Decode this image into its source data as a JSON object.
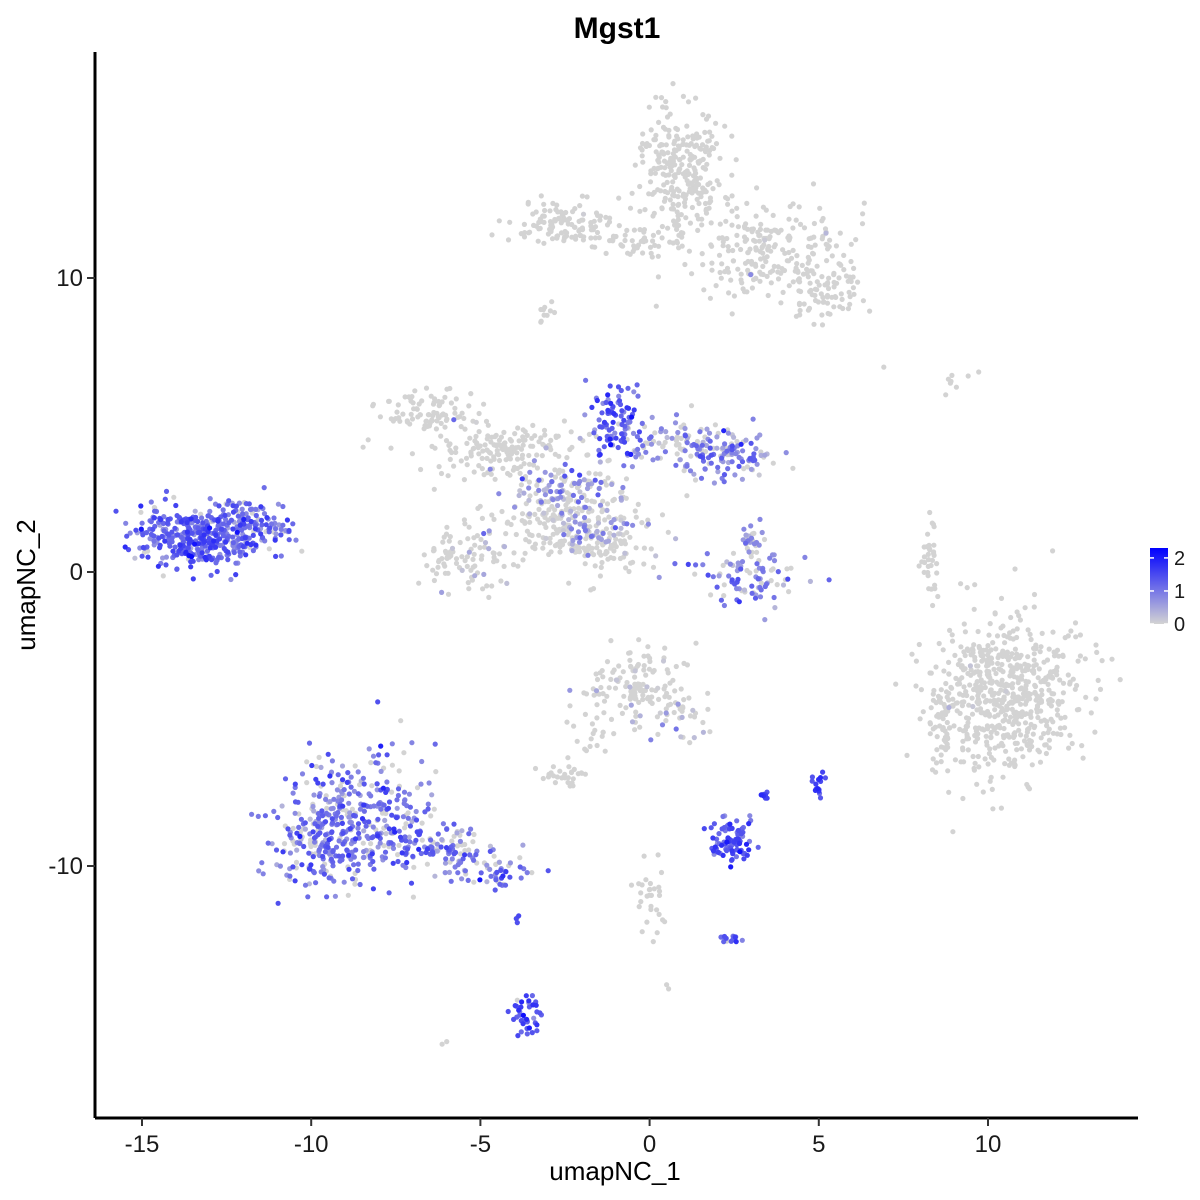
{
  "chart_data": {
    "type": "scatter",
    "title": "Mgst1",
    "xlabel": "umapNC_1",
    "ylabel": "umapNC_2",
    "xlim": [
      -16.4,
      14.5
    ],
    "ylim": [
      -18.5,
      17.5
    ],
    "x_ticks": [
      -15,
      -10,
      -5,
      0,
      5,
      10
    ],
    "x_tick_labels": [
      "-15",
      "-10",
      "-5",
      "0",
      "5",
      "10"
    ],
    "y_ticks": [
      -10,
      0,
      10
    ],
    "y_tick_labels": [
      "-10",
      "0",
      "10"
    ],
    "grid": false,
    "legend": {
      "placement": "right",
      "type": "color-gradient",
      "ticks": [
        0,
        1,
        2
      ],
      "tick_labels": [
        "0",
        "1",
        "2"
      ],
      "range": [
        0,
        2.3
      ],
      "colors": [
        "#d3d3d3",
        "#0000ff"
      ]
    },
    "clusters": [
      {
        "cx": -13.2,
        "cy": 1.2,
        "sx": 1.0,
        "sy": 0.55,
        "n": 420,
        "expr": 1.2
      },
      {
        "cx": -12.0,
        "cy": 2.0,
        "sx": 0.5,
        "sy": 0.4,
        "n": 50,
        "expr": 1.1
      },
      {
        "cx": -11.1,
        "cy": 1.4,
        "sx": 0.4,
        "sy": 0.2,
        "n": 30,
        "expr": 1.0
      },
      {
        "cx": -8.7,
        "cy": -8.4,
        "sx": 1.0,
        "sy": 1.2,
        "n": 380,
        "expr": 1.05
      },
      {
        "cx": -10.0,
        "cy": -9.2,
        "sx": 0.6,
        "sy": 0.5,
        "n": 90,
        "expr": 1.0
      },
      {
        "cx": -6.4,
        "cy": -9.4,
        "sx": 1.0,
        "sy": 0.35,
        "n": 110,
        "expr": 1.0
      },
      {
        "cx": -4.7,
        "cy": -10.2,
        "sx": 0.6,
        "sy": 0.25,
        "n": 50,
        "expr": 1.05
      },
      {
        "cx": -3.6,
        "cy": -15.0,
        "sx": 0.25,
        "sy": 0.5,
        "n": 40,
        "expr": 1.4
      },
      {
        "cx": -3.9,
        "cy": -11.8,
        "sx": 0.05,
        "sy": 0.1,
        "n": 4,
        "expr": 1.0
      },
      {
        "cx": -2.3,
        "cy": 1.6,
        "sx": 1.2,
        "sy": 0.8,
        "n": 230,
        "expr": 0.25
      },
      {
        "cx": -5.5,
        "cy": 0.4,
        "sx": 0.6,
        "sy": 0.6,
        "n": 80,
        "expr": 0.2
      },
      {
        "cx": -4.5,
        "cy": 4.2,
        "sx": 1.2,
        "sy": 0.5,
        "n": 170,
        "expr": 0.05
      },
      {
        "cx": -6.6,
        "cy": 5.4,
        "sx": 0.7,
        "sy": 0.4,
        "n": 80,
        "expr": 0.03
      },
      {
        "cx": -1.0,
        "cy": 5.3,
        "sx": 0.35,
        "sy": 0.6,
        "n": 90,
        "expr": 1.3
      },
      {
        "cx": 0.5,
        "cy": 4.2,
        "sx": 1.0,
        "sy": 0.5,
        "n": 90,
        "expr": 0.7
      },
      {
        "cx": 2.3,
        "cy": 4.0,
        "sx": 0.6,
        "sy": 0.4,
        "n": 110,
        "expr": 0.9
      },
      {
        "cx": -2.5,
        "cy": 3.0,
        "sx": 0.8,
        "sy": 0.4,
        "n": 80,
        "expr": 0.8
      },
      {
        "cx": -1.8,
        "cy": 1.5,
        "sx": 0.6,
        "sy": 0.5,
        "n": 60,
        "expr": 0.7
      },
      {
        "cx": -1.2,
        "cy": 0.8,
        "sx": 0.5,
        "sy": 0.3,
        "n": 40,
        "expr": 0.0
      },
      {
        "cx": 0.9,
        "cy": 13.8,
        "sx": 0.6,
        "sy": 1.1,
        "n": 270,
        "expr": 0.02
      },
      {
        "cx": 3.5,
        "cy": 11.0,
        "sx": 1.2,
        "sy": 0.8,
        "n": 220,
        "expr": 0.03
      },
      {
        "cx": 5.2,
        "cy": 9.5,
        "sx": 0.6,
        "sy": 0.5,
        "n": 80,
        "expr": 0.05
      },
      {
        "cx": -2.4,
        "cy": 11.8,
        "sx": 0.8,
        "sy": 0.4,
        "n": 120,
        "expr": 0.03
      },
      {
        "cx": -0.5,
        "cy": 11.2,
        "sx": 0.7,
        "sy": 0.25,
        "n": 40,
        "expr": 0.0
      },
      {
        "cx": 2.9,
        "cy": -0.2,
        "sx": 0.8,
        "sy": 0.5,
        "n": 90,
        "expr": 0.9
      },
      {
        "cx": 3.0,
        "cy": 1.0,
        "sx": 0.2,
        "sy": 0.3,
        "n": 25,
        "expr": 0.8
      },
      {
        "cx": 10.5,
        "cy": -4.2,
        "sx": 1.1,
        "sy": 1.3,
        "n": 620,
        "expr": 0.02
      },
      {
        "cx": 8.6,
        "cy": -5.4,
        "sx": 0.3,
        "sy": 0.8,
        "n": 40,
        "expr": 0.08
      },
      {
        "cx": -0.6,
        "cy": -3.8,
        "sx": 0.8,
        "sy": 0.6,
        "n": 120,
        "expr": 0.2
      },
      {
        "cx": 0.9,
        "cy": -4.7,
        "sx": 0.5,
        "sy": 0.5,
        "n": 40,
        "expr": 0.35
      },
      {
        "cx": -1.6,
        "cy": -5.6,
        "sx": 0.3,
        "sy": 0.5,
        "n": 20,
        "expr": 0.1
      },
      {
        "cx": -2.5,
        "cy": -6.9,
        "sx": 0.3,
        "sy": 0.2,
        "n": 30,
        "expr": 0.0
      },
      {
        "cx": 2.4,
        "cy": -9.2,
        "sx": 0.35,
        "sy": 0.4,
        "n": 90,
        "expr": 1.35
      },
      {
        "cx": 3.4,
        "cy": -7.6,
        "sx": 0.08,
        "sy": 0.08,
        "n": 8,
        "expr": 1.6
      },
      {
        "cx": 5.0,
        "cy": -7.3,
        "sx": 0.1,
        "sy": 0.2,
        "n": 15,
        "expr": 1.5
      },
      {
        "cx": 2.4,
        "cy": -12.5,
        "sx": 0.2,
        "sy": 0.1,
        "n": 15,
        "expr": 1.2
      },
      {
        "cx": 0.0,
        "cy": -11.2,
        "sx": 0.25,
        "sy": 0.6,
        "n": 30,
        "expr": 0.05
      },
      {
        "cx": 8.3,
        "cy": 0.4,
        "sx": 0.15,
        "sy": 0.6,
        "n": 35,
        "expr": 0.0
      },
      {
        "cx": 9.0,
        "cy": 6.5,
        "sx": 0.4,
        "sy": 0.2,
        "n": 8,
        "expr": 0.0
      },
      {
        "cx": -3.1,
        "cy": 8.8,
        "sx": 0.15,
        "sy": 0.3,
        "n": 10,
        "expr": 0.0
      },
      {
        "cx": -6.0,
        "cy": -16.0,
        "sx": 0.05,
        "sy": 0.05,
        "n": 2,
        "expr": 0.0
      },
      {
        "cx": 0.6,
        "cy": -14.1,
        "sx": 0.05,
        "sy": 0.05,
        "n": 2,
        "expr": 0.0
      },
      {
        "cx": 6.9,
        "cy": 6.9,
        "sx": 0.05,
        "sy": 0.05,
        "n": 1,
        "expr": 0.0
      }
    ]
  }
}
